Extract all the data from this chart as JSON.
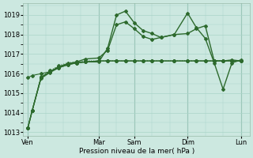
{
  "background_color": "#cce8e0",
  "grid_color": "#aad4c8",
  "line_color": "#2d6a2d",
  "title": "Pression niveau de la mer( hPa )",
  "ylim": [
    1012.8,
    1019.6
  ],
  "yticks": [
    1013,
    1014,
    1015,
    1016,
    1017,
    1018,
    1019
  ],
  "day_labels": [
    "Ven",
    "Mar",
    "Sam",
    "Dim",
    "Lun"
  ],
  "day_positions": [
    0,
    16,
    24,
    36,
    48
  ],
  "xlim": [
    -1,
    50
  ],
  "lines": [
    {
      "x": [
        0,
        1,
        3,
        5,
        7,
        9,
        11,
        13,
        16,
        18,
        20,
        22,
        24,
        26,
        28,
        30,
        33,
        36,
        38,
        40,
        42,
        44,
        46,
        48
      ],
      "y": [
        1013.2,
        1014.1,
        1015.8,
        1016.1,
        1016.35,
        1016.5,
        1016.55,
        1016.6,
        1016.6,
        1017.3,
        1019.0,
        1019.2,
        1018.6,
        1018.2,
        1018.05,
        1017.85,
        1018.0,
        1019.1,
        1018.35,
        1017.8,
        1016.55,
        1015.2,
        1016.55,
        1016.7
      ],
      "style": "-",
      "marker": "D",
      "markersize": 2.0,
      "lw": 1.0
    },
    {
      "x": [
        0,
        1,
        3,
        5,
        7,
        9,
        11,
        13,
        16,
        18,
        20,
        22,
        24,
        26,
        28,
        30,
        33,
        36,
        38,
        40,
        42,
        44,
        46,
        48
      ],
      "y": [
        1013.2,
        1014.1,
        1015.85,
        1016.15,
        1016.4,
        1016.55,
        1016.6,
        1016.65,
        1016.65,
        1016.65,
        1016.65,
        1016.65,
        1016.65,
        1016.65,
        1016.65,
        1016.65,
        1016.65,
        1016.65,
        1016.65,
        1016.65,
        1016.65,
        1016.65,
        1016.65,
        1016.65
      ],
      "style": ":",
      "marker": "D",
      "markersize": 2.0,
      "lw": 0.8
    },
    {
      "x": [
        0,
        1,
        3,
        5,
        7,
        9,
        11,
        13,
        16,
        18,
        20,
        22,
        24,
        26,
        28,
        30,
        33,
        36,
        38,
        40,
        42,
        44,
        46,
        48
      ],
      "y": [
        1013.2,
        1014.1,
        1015.8,
        1016.1,
        1016.35,
        1016.5,
        1016.6,
        1016.75,
        1016.8,
        1017.2,
        1018.5,
        1018.65,
        1018.3,
        1017.9,
        1017.75,
        1017.85,
        1018.0,
        1018.05,
        1018.3,
        1018.45,
        1016.65,
        1016.65,
        1016.7,
        1016.65
      ],
      "style": "-",
      "marker": "D",
      "markersize": 2.0,
      "lw": 1.0
    },
    {
      "x": [
        0,
        1,
        3,
        5,
        7,
        9,
        11,
        13,
        16,
        18,
        20,
        22,
        24,
        26,
        28,
        30,
        33,
        36,
        38,
        40,
        42,
        44,
        46,
        48
      ],
      "y": [
        1013.2,
        1014.1,
        1015.75,
        1016.05,
        1016.3,
        1016.45,
        1016.55,
        1016.6,
        1016.65,
        1016.65,
        1016.65,
        1016.65,
        1016.65,
        1016.65,
        1016.65,
        1016.65,
        1016.65,
        1016.65,
        1016.65,
        1016.65,
        1016.65,
        1016.65,
        1016.65,
        1016.65
      ],
      "style": "-",
      "marker": "D",
      "markersize": 2.0,
      "lw": 0.8
    },
    {
      "x": [
        0,
        1,
        3,
        5,
        7,
        9,
        11,
        13,
        16,
        18,
        20,
        22,
        24,
        26,
        28,
        30,
        33,
        36,
        38,
        40,
        42,
        44,
        46,
        48
      ],
      "y": [
        1015.8,
        1015.9,
        1016.0,
        1016.1,
        1016.3,
        1016.45,
        1016.55,
        1016.6,
        1016.65,
        1016.65,
        1016.65,
        1016.65,
        1016.65,
        1016.65,
        1016.65,
        1016.65,
        1016.65,
        1016.65,
        1016.65,
        1016.65,
        1016.65,
        1016.65,
        1016.65,
        1016.65
      ],
      "style": "-",
      "marker": "D",
      "markersize": 2.0,
      "lw": 0.8
    }
  ]
}
